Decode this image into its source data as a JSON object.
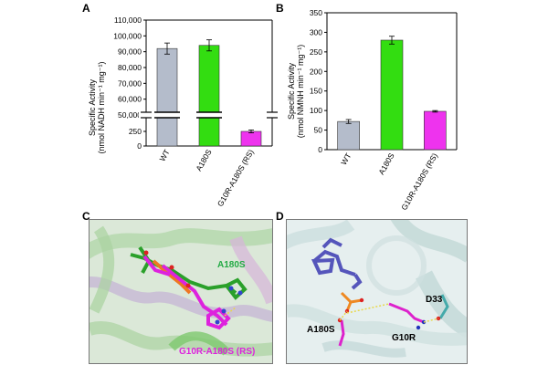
{
  "panels": {
    "a": "A",
    "b": "B",
    "c": "C",
    "d": "D"
  },
  "chart_data": [
    {
      "type": "bar",
      "categories": [
        "WT",
        "A180S",
        "G10R-A180S (RS)"
      ],
      "values": [
        92000,
        94000,
        250
      ],
      "errors": [
        3500,
        3500,
        25
      ],
      "colors": [
        "#b4bccb",
        "#33dd11",
        "#ee33ee"
      ],
      "ylabel_lines": [
        "Specific Activity",
        "(nmol NADH min⁻¹ mg⁻¹)"
      ],
      "axis_break": true,
      "yticks_upper": [
        "50,000",
        "60,000",
        "70,000",
        "80,000",
        "90,000",
        "100,000",
        "110,000"
      ],
      "yticks_lower": [
        "0",
        "250",
        "500"
      ],
      "ylim_lower": [
        0,
        500
      ],
      "ylim_upper": [
        50000,
        110000
      ],
      "grid": false
    },
    {
      "type": "bar",
      "categories": [
        "WT",
        "A180S",
        "G10R-A180S (RS)"
      ],
      "values": [
        72,
        280,
        98
      ],
      "errors": [
        5,
        10,
        2
      ],
      "colors": [
        "#b4bccb",
        "#33dd11",
        "#ee33ee"
      ],
      "ylabel_lines": [
        "Specific Activity",
        "(nmol NMNH min⁻¹ mg⁻¹)"
      ],
      "yticks": [
        "0",
        "50",
        "100",
        "150",
        "200",
        "250",
        "300",
        "350"
      ],
      "ylim": [
        0,
        350
      ],
      "grid": false
    }
  ],
  "structure_c": {
    "label_green": "A180S",
    "label_magenta": "G10R-A180S (RS)",
    "color_green": "#22aa44",
    "color_magenta": "#dd22dd"
  },
  "structure_d": {
    "label_a180s": "A180S",
    "label_g10r": "G10R",
    "label_d33": "D33"
  }
}
